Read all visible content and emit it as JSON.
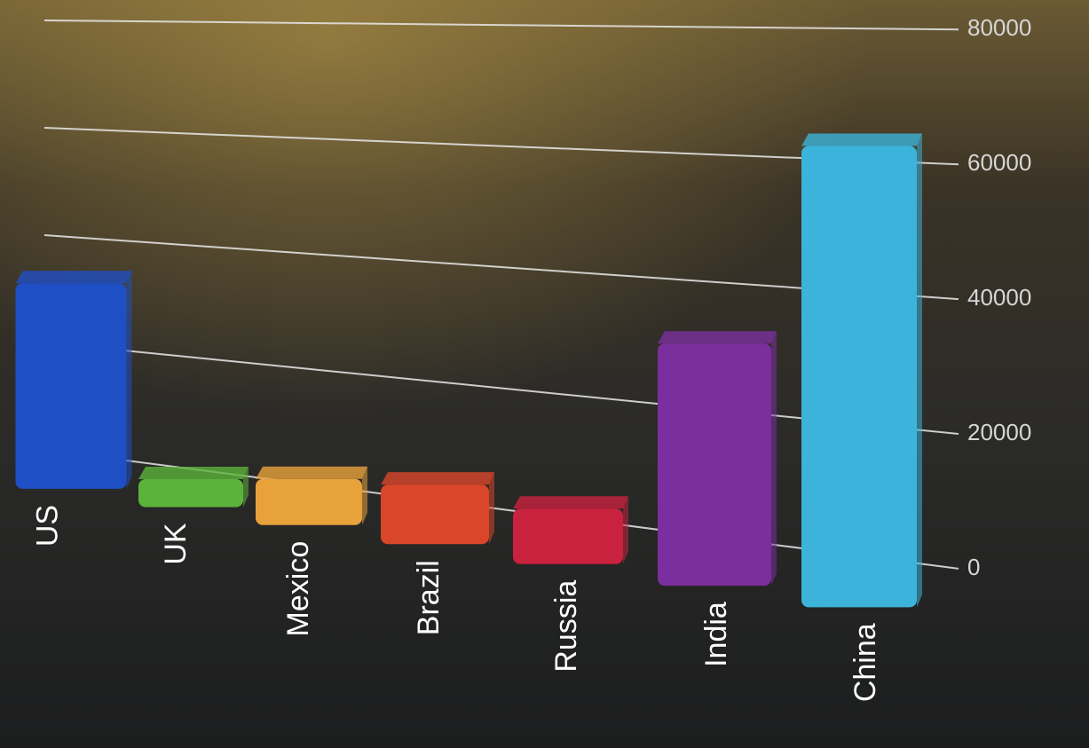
{
  "chart_data": {
    "type": "bar",
    "categories": [
      "US",
      "UK",
      "Mexico",
      "Brazil",
      "Russia",
      "India",
      "China"
    ],
    "values": [
      38000,
      5000,
      8000,
      10000,
      9000,
      38000,
      70000
    ],
    "colors": [
      "#1f4fc4",
      "#5cb33b",
      "#e8a23c",
      "#d9462a",
      "#c9223f",
      "#7b2f9e",
      "#3cb3da"
    ],
    "ylim": [
      0,
      80000
    ],
    "yticks": [
      0,
      20000,
      40000,
      60000,
      80000
    ],
    "grid": true
  }
}
